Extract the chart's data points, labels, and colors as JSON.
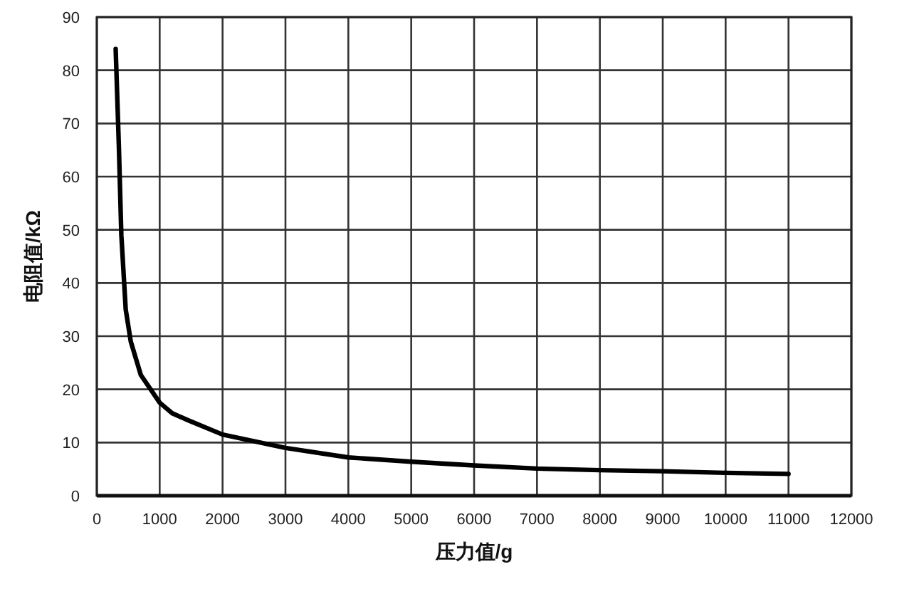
{
  "chart_data": {
    "type": "line",
    "xlabel": "压力值/g",
    "ylabel": "电阻值/kΩ",
    "x": [
      300,
      350,
      390,
      460,
      540,
      700,
      1000,
      1200,
      1450,
      2000,
      3000,
      4000,
      5000,
      6000,
      7000,
      8000,
      9000,
      10000,
      11000
    ],
    "series": [
      {
        "color": "#000000",
        "values": [
          84,
          66,
          49,
          35,
          29,
          22.7,
          17.5,
          15.5,
          14.2,
          11.5,
          9,
          7.2,
          6.4,
          5.7,
          5.1,
          4.8,
          4.6,
          4.3,
          4.1
        ]
      }
    ],
    "xlim": [
      0,
      12000
    ],
    "ylim": [
      0,
      90
    ],
    "xticks": [
      0,
      1000,
      2000,
      3000,
      4000,
      5000,
      6000,
      7000,
      8000,
      9000,
      10000,
      11000,
      12000
    ],
    "yticks": [
      0,
      10,
      20,
      30,
      40,
      50,
      60,
      70,
      80,
      90
    ],
    "grid": true,
    "marker": "none",
    "line_style": "solid"
  }
}
